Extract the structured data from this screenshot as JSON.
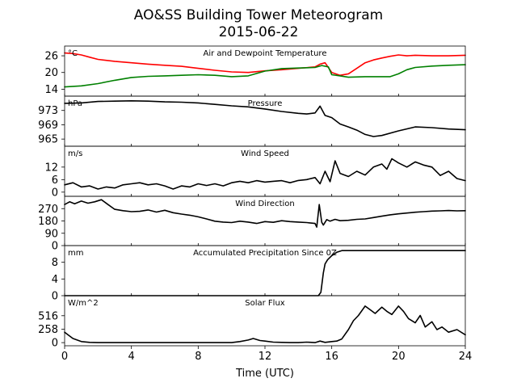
{
  "figure": {
    "title": "AO&SS Building Tower Meteorogram",
    "subtitle": "2015-06-22",
    "xlabel": "Time (UTC)",
    "xlim": [
      0,
      24
    ],
    "xticks": [
      0,
      4,
      8,
      12,
      16,
      20,
      24
    ]
  },
  "chart_data": [
    {
      "type": "line",
      "title": "Air and Dewpoint Temperature",
      "unit": "°C",
      "ylim": [
        11.5,
        29.5
      ],
      "yticks": [
        14,
        20,
        26
      ],
      "series": [
        {
          "color": "#ff0000",
          "x": [
            0,
            0.5,
            1,
            1.5,
            2,
            3,
            4,
            5,
            6,
            7,
            8,
            9,
            10,
            11,
            12,
            13,
            14,
            15,
            15.3,
            15.6,
            16,
            16.5,
            17,
            17.5,
            18,
            18.5,
            19,
            19.5,
            20,
            20.5,
            21,
            22,
            23,
            24
          ],
          "y": [
            27,
            26.8,
            26.3,
            25.5,
            24.7,
            24,
            23.5,
            23,
            22.6,
            22.2,
            21.5,
            20.8,
            20.2,
            20,
            20.6,
            21,
            21.5,
            22,
            23,
            23.5,
            20,
            19,
            19.5,
            21.5,
            23.5,
            24.5,
            25.2,
            25.8,
            26.3,
            26,
            26.2,
            26,
            26,
            26.2
          ]
        },
        {
          "color": "#008000",
          "x": [
            0,
            1,
            2,
            3,
            4,
            5,
            6,
            7,
            8,
            9,
            10,
            11,
            12,
            13,
            14,
            15,
            15.4,
            15.8,
            16,
            16.5,
            17,
            18,
            19,
            19.5,
            20,
            20.5,
            21,
            22,
            23,
            24
          ],
          "y": [
            14.8,
            15.2,
            16,
            17.2,
            18.2,
            18.6,
            18.8,
            19,
            19.2,
            19,
            18.5,
            18.8,
            20.5,
            21.4,
            21.6,
            21.8,
            22.5,
            22,
            19.2,
            18.8,
            18.3,
            18.5,
            18.5,
            18.5,
            19.5,
            21,
            21.8,
            22.3,
            22.6,
            22.8
          ]
        }
      ]
    },
    {
      "type": "line",
      "title": "Pressure",
      "unit": "hPa",
      "ylim": [
        963,
        977
      ],
      "yticks": [
        965,
        969,
        973
      ],
      "series": [
        {
          "color": "#000000",
          "x": [
            0,
            1,
            2,
            3,
            4,
            5,
            6,
            7,
            8,
            9,
            10,
            11,
            12,
            13,
            14,
            14.5,
            15,
            15.3,
            15.6,
            16,
            16.5,
            17,
            17.5,
            18,
            18.5,
            19,
            20,
            21,
            22,
            23,
            24
          ],
          "y": [
            975,
            975.1,
            975.5,
            975.6,
            975.7,
            975.6,
            975.4,
            975.3,
            975.1,
            974.7,
            974.3,
            974,
            973.4,
            972.7,
            972.2,
            972,
            972.3,
            974.2,
            971.6,
            971,
            969.2,
            968.4,
            967.5,
            966.3,
            965.7,
            966,
            967.3,
            968.4,
            968.2,
            967.8,
            967.6
          ]
        }
      ]
    },
    {
      "type": "line",
      "title": "Wind Speed",
      "unit": "m/s",
      "ylim": [
        -2,
        22
      ],
      "yticks": [
        0,
        6,
        12
      ],
      "series": [
        {
          "color": "#000000",
          "x": [
            0,
            0.5,
            1,
            1.5,
            2,
            2.5,
            3,
            3.5,
            4,
            4.5,
            5,
            5.5,
            6,
            6.5,
            7,
            7.5,
            8,
            8.5,
            9,
            9.5,
            10,
            10.5,
            11,
            11.5,
            12,
            12.5,
            13,
            13.5,
            14,
            14.5,
            15,
            15.3,
            15.6,
            15.9,
            16.2,
            16.5,
            17,
            17.5,
            18,
            18.5,
            19,
            19.3,
            19.6,
            20,
            20.5,
            21,
            21.5,
            22,
            22.5,
            23,
            23.5,
            24
          ],
          "y": [
            3.5,
            4.5,
            2.5,
            3,
            1.5,
            2.5,
            2,
            3.5,
            4,
            4.5,
            3.5,
            4,
            3,
            1.5,
            3,
            2.5,
            4,
            3.2,
            4,
            3,
            4.5,
            5.2,
            4.5,
            5.5,
            4.8,
            5.2,
            5.5,
            4.5,
            5.6,
            6,
            7,
            4,
            10,
            5,
            15,
            9,
            7.5,
            10,
            8.2,
            12,
            13.5,
            11,
            16,
            14,
            12,
            14.5,
            13,
            12,
            8,
            10,
            6.5,
            5.5
          ]
        }
      ]
    },
    {
      "type": "line",
      "title": "Wind Direction",
      "unit": "",
      "ylim": [
        0,
        360
      ],
      "yticks": [
        0,
        90,
        180,
        270
      ],
      "series": [
        {
          "color": "#000000",
          "x": [
            0,
            0.3,
            0.6,
            1,
            1.4,
            1.8,
            2.2,
            2.6,
            3,
            3.5,
            4,
            4.5,
            5,
            5.5,
            6,
            6.5,
            7,
            7.5,
            8,
            8.5,
            9,
            9.5,
            10,
            10.5,
            11,
            11.5,
            12,
            12.5,
            13,
            13.5,
            14,
            14.5,
            15,
            15.1,
            15.25,
            15.4,
            15.5,
            15.7,
            15.9,
            16.2,
            16.5,
            17,
            17.5,
            18,
            18.5,
            19,
            19.5,
            20,
            20.5,
            21,
            21.5,
            22,
            22.5,
            23,
            23.5,
            24
          ],
          "y": [
            300,
            320,
            305,
            325,
            310,
            320,
            335,
            300,
            265,
            255,
            248,
            250,
            260,
            245,
            258,
            240,
            230,
            222,
            210,
            195,
            178,
            172,
            168,
            178,
            172,
            162,
            175,
            170,
            182,
            175,
            172,
            168,
            162,
            135,
            300,
            170,
            150,
            190,
            178,
            192,
            182,
            185,
            192,
            195,
            205,
            215,
            225,
            232,
            238,
            244,
            248,
            252,
            254,
            256,
            254,
            255
          ]
        }
      ]
    },
    {
      "type": "line",
      "title": "Accumulated Precipitation Since 0Z",
      "unit": "mm",
      "ylim": [
        0,
        12
      ],
      "yticks": [
        0,
        4,
        8
      ],
      "series": [
        {
          "color": "#000000",
          "x": [
            0,
            14,
            15.2,
            15.35,
            15.5,
            15.6,
            15.75,
            16,
            16.3,
            16.6,
            24
          ],
          "y": [
            0,
            0,
            0,
            0.8,
            5.5,
            7.6,
            8.6,
            9.6,
            10.4,
            10.8,
            10.8
          ]
        }
      ]
    },
    {
      "type": "line",
      "title": "Solar Flux",
      "unit": "W/m^2",
      "ylim": [
        -60,
        900
      ],
      "yticks": [
        0,
        258,
        516
      ],
      "series": [
        {
          "color": "#000000",
          "x": [
            0,
            0.2,
            0.5,
            1,
            1.5,
            2,
            3,
            4,
            5,
            6,
            7,
            8,
            9,
            10,
            10.5,
            11,
            11.3,
            11.7,
            12,
            12.5,
            13,
            13.5,
            14,
            14.5,
            15,
            15.3,
            15.6,
            16,
            16.3,
            16.6,
            17,
            17.3,
            17.6,
            18,
            18.3,
            18.6,
            19,
            19.3,
            19.6,
            20,
            20.3,
            20.6,
            21,
            21.3,
            21.6,
            22,
            22.3,
            22.6,
            23,
            23.5,
            24
          ],
          "y": [
            200,
            150,
            80,
            20,
            5,
            0,
            0,
            0,
            0,
            0,
            0,
            0,
            0,
            0,
            20,
            50,
            80,
            40,
            30,
            10,
            5,
            0,
            0,
            10,
            0,
            30,
            5,
            20,
            30,
            70,
            250,
            420,
            520,
            700,
            630,
            560,
            680,
            600,
            540,
            700,
            600,
            460,
            380,
            520,
            300,
            400,
            250,
            300,
            200,
            250,
            150
          ]
        }
      ]
    }
  ]
}
